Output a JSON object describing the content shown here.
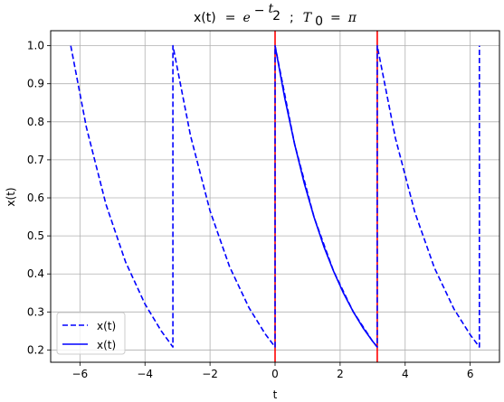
{
  "chart_data": {
    "type": "line",
    "title": {
      "prefix": "x(t)",
      "eq": "=",
      "base": "e",
      "exp_sign": "−",
      "exp_num": "t",
      "exp_den": "2",
      "sep": ";",
      "period_sym": "T",
      "period_sub": "0",
      "period_eq": "=",
      "period_val": "π"
    },
    "xlabel": "t",
    "ylabel": "x(t)",
    "xlim": [
      -6.9,
      6.9
    ],
    "ylim": [
      0.1678,
      1.0394
    ],
    "xticks": [
      -6,
      -4,
      -2,
      0,
      2,
      4,
      6
    ],
    "xtick_labels": [
      "−6",
      "−4",
      "−2",
      "0",
      "2",
      "4",
      "6"
    ],
    "yticks": [
      0.2,
      0.3,
      0.4,
      0.5,
      0.6,
      0.7,
      0.8,
      0.9,
      1.0
    ],
    "ytick_labels": [
      "0.2",
      "0.3",
      "0.4",
      "0.5",
      "0.6",
      "0.7",
      "0.8",
      "0.9",
      "1.0"
    ],
    "grid": true,
    "legend_position": "lower-left",
    "function": "exp(-t/2) repeated with period pi",
    "period": 3.14159,
    "series": [
      {
        "name": "x(t)",
        "style": "dashed",
        "color": "#0000ff",
        "x": [
          -6.283,
          -5.8,
          -5.2,
          -4.6,
          -4.0,
          -3.5,
          -3.142,
          -3.142,
          -2.6,
          -2.0,
          -1.4,
          -0.8,
          -0.3,
          0.0,
          0.0,
          0.6,
          1.2,
          1.8,
          2.4,
          3.0,
          3.142,
          3.142,
          3.7,
          4.3,
          4.9,
          5.5,
          6.0,
          6.283,
          6.283
        ],
        "y": [
          1.0,
          0.785,
          0.583,
          0.432,
          0.321,
          0.25,
          0.208,
          1.0,
          0.763,
          0.566,
          0.419,
          0.311,
          0.242,
          0.208,
          1.0,
          0.741,
          0.549,
          0.407,
          0.301,
          0.223,
          0.208,
          1.0,
          0.757,
          0.561,
          0.416,
          0.308,
          0.24,
          0.208,
          1.0
        ]
      },
      {
        "name": "x(t)",
        "style": "solid",
        "color": "#0000ff",
        "x": [
          0.0,
          0.3,
          0.6,
          0.9,
          1.2,
          1.5,
          1.8,
          2.1,
          2.4,
          2.7,
          3.0,
          3.142
        ],
        "y": [
          1.0,
          0.861,
          0.741,
          0.638,
          0.549,
          0.472,
          0.407,
          0.35,
          0.301,
          0.259,
          0.223,
          0.208
        ]
      }
    ],
    "vlines": [
      {
        "x": 0.0,
        "color": "#ff0000"
      },
      {
        "x": 3.14159,
        "color": "#ff0000"
      }
    ]
  }
}
